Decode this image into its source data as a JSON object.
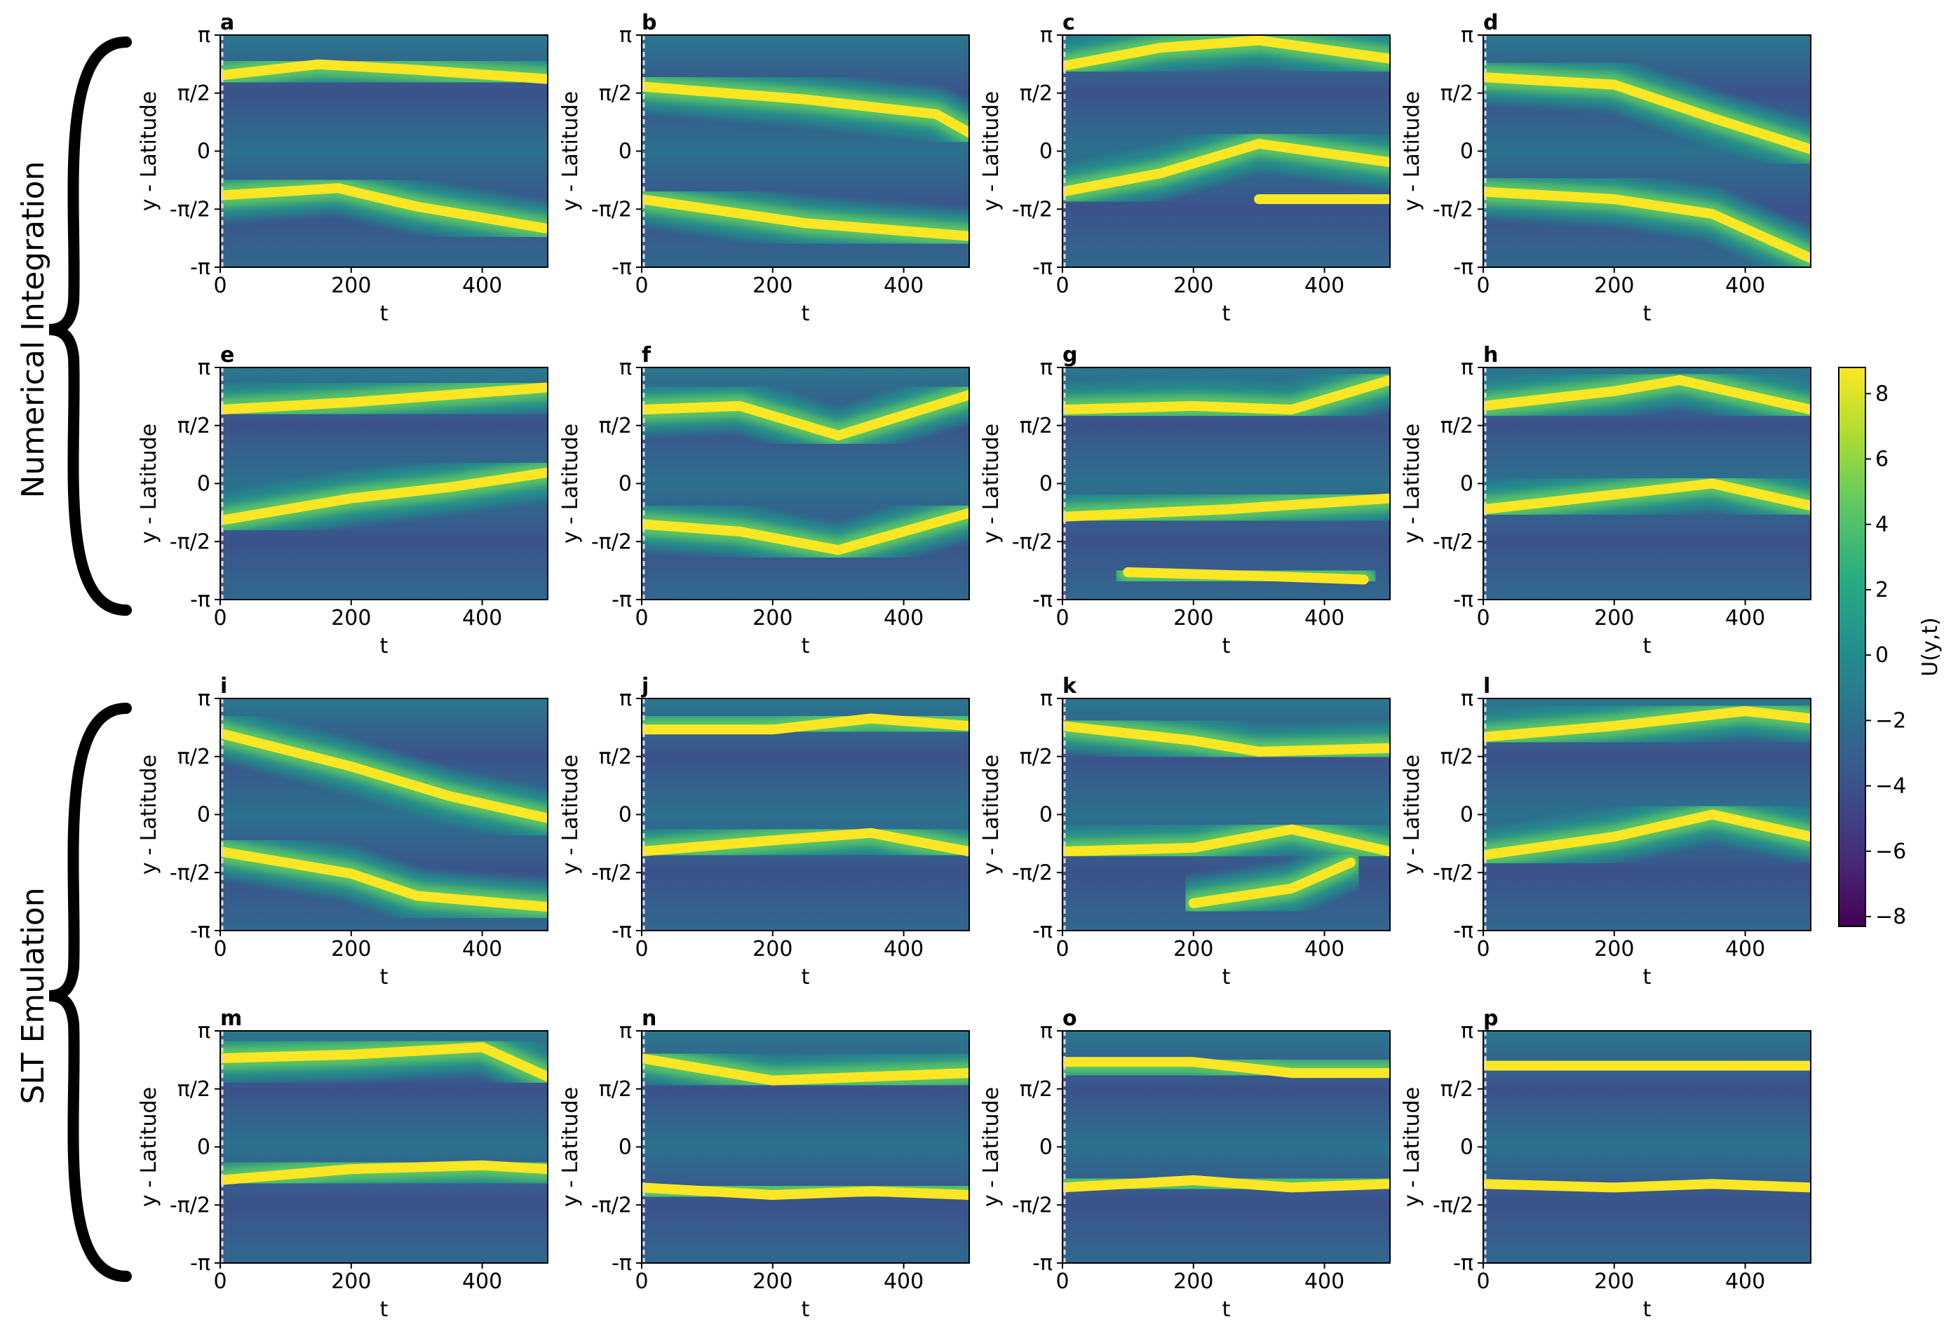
{
  "figure": {
    "group_labels": [
      "Numerical Integration",
      "SLT Emulation"
    ],
    "colorbar": {
      "label": "U(y,t)",
      "ticks": [
        "8",
        "6",
        "4",
        "2",
        "0",
        "−2",
        "−4",
        "−6",
        "−8"
      ],
      "colormap": "viridis",
      "colors": [
        "#440154",
        "#472c7a",
        "#3b518b",
        "#2c718e",
        "#21908d",
        "#27ad81",
        "#5cc863",
        "#aadc32",
        "#fde725"
      ]
    }
  },
  "chart_data": {
    "type": "heatmap",
    "panels": [
      "a",
      "b",
      "c",
      "d",
      "e",
      "f",
      "g",
      "h",
      "i",
      "j",
      "k",
      "l",
      "m",
      "n",
      "o",
      "p"
    ],
    "xlabel": "t",
    "ylabel": "y - Latitude",
    "xlim": [
      0,
      500
    ],
    "ylim": [
      "-π",
      "π"
    ],
    "x_ticks": [
      0,
      200,
      400
    ],
    "x_tick_labels": [
      "0",
      "200",
      "400"
    ],
    "y_tick_labels": [
      "π",
      "π/2",
      "0",
      "-π/2",
      "-π"
    ],
    "color_range": [
      -8.3,
      8.8
    ],
    "colorbar_ticks": [
      8,
      6,
      4,
      2,
      0,
      -2,
      -4,
      -6,
      -8
    ],
    "jets": [
      [
        [
          [
            0,
            2.05
          ],
          [
            150,
            2.35
          ],
          [
            300,
            2.2
          ],
          [
            500,
            1.95
          ]
        ],
        [
          [
            0,
            -1.2
          ],
          [
            180,
            -1.0
          ],
          [
            300,
            -1.5
          ],
          [
            500,
            -2.1
          ]
        ]
      ],
      [
        [
          [
            0,
            1.75
          ],
          [
            250,
            1.4
          ],
          [
            450,
            1.0
          ],
          [
            500,
            0.5
          ]
        ],
        [
          [
            0,
            -1.3
          ],
          [
            250,
            -1.95
          ],
          [
            500,
            -2.3
          ]
        ]
      ],
      [
        [
          [
            0,
            2.3
          ],
          [
            150,
            2.8
          ],
          [
            300,
            3.0
          ],
          [
            500,
            2.5
          ]
        ],
        [
          [
            0,
            -1.1
          ],
          [
            150,
            -0.6
          ],
          [
            300,
            0.2
          ],
          [
            500,
            -0.3
          ]
        ],
        [
          [
            300,
            -1.3
          ],
          [
            500,
            -1.3
          ]
        ]
      ],
      [
        [
          [
            0,
            2.0
          ],
          [
            200,
            1.8
          ],
          [
            350,
            0.9
          ],
          [
            500,
            0.05
          ]
        ],
        [
          [
            0,
            -1.1
          ],
          [
            200,
            -1.3
          ],
          [
            350,
            -1.7
          ],
          [
            500,
            -2.9
          ]
        ]
      ],
      [
        [
          [
            0,
            2.0
          ],
          [
            200,
            2.2
          ],
          [
            350,
            2.4
          ],
          [
            500,
            2.6
          ]
        ],
        [
          [
            0,
            -1.0
          ],
          [
            200,
            -0.4
          ],
          [
            350,
            -0.1
          ],
          [
            500,
            0.3
          ]
        ]
      ],
      [
        [
          [
            0,
            2.0
          ],
          [
            150,
            2.1
          ],
          [
            300,
            1.3
          ],
          [
            500,
            2.4
          ]
        ],
        [
          [
            0,
            -1.1
          ],
          [
            150,
            -1.3
          ],
          [
            300,
            -1.8
          ],
          [
            500,
            -0.8
          ]
        ]
      ],
      [
        [
          [
            0,
            2.0
          ],
          [
            200,
            2.1
          ],
          [
            350,
            2.0
          ],
          [
            500,
            2.8
          ]
        ],
        [
          [
            0,
            -0.9
          ],
          [
            250,
            -0.7
          ],
          [
            500,
            -0.4
          ]
        ],
        [
          [
            100,
            -2.4
          ],
          [
            300,
            -2.5
          ],
          [
            460,
            -2.6
          ]
        ]
      ],
      [
        [
          [
            0,
            2.1
          ],
          [
            200,
            2.5
          ],
          [
            300,
            2.8
          ],
          [
            500,
            2.0
          ]
        ],
        [
          [
            0,
            -0.7
          ],
          [
            200,
            -0.3
          ],
          [
            350,
            0.0
          ],
          [
            500,
            -0.6
          ]
        ]
      ],
      [
        [
          [
            0,
            2.2
          ],
          [
            200,
            1.3
          ],
          [
            350,
            0.5
          ],
          [
            500,
            -0.1
          ]
        ],
        [
          [
            0,
            -1.0
          ],
          [
            200,
            -1.6
          ],
          [
            300,
            -2.2
          ],
          [
            500,
            -2.5
          ]
        ]
      ],
      [
        [
          [
            0,
            2.3
          ],
          [
            200,
            2.3
          ],
          [
            350,
            2.6
          ],
          [
            500,
            2.4
          ]
        ],
        [
          [
            0,
            -1.0
          ],
          [
            200,
            -0.7
          ],
          [
            350,
            -0.5
          ],
          [
            500,
            -1.0
          ]
        ]
      ],
      [
        [
          [
            0,
            2.4
          ],
          [
            200,
            2.0
          ],
          [
            300,
            1.7
          ],
          [
            500,
            1.8
          ]
        ],
        [
          [
            0,
            -1.0
          ],
          [
            200,
            -0.9
          ],
          [
            350,
            -0.4
          ],
          [
            500,
            -1.0
          ]
        ],
        [
          [
            200,
            -2.4
          ],
          [
            350,
            -2.0
          ],
          [
            440,
            -1.3
          ]
        ]
      ],
      [
        [
          [
            0,
            2.1
          ],
          [
            200,
            2.4
          ],
          [
            400,
            2.8
          ],
          [
            500,
            2.6
          ]
        ],
        [
          [
            0,
            -1.1
          ],
          [
            200,
            -0.6
          ],
          [
            350,
            0.0
          ],
          [
            500,
            -0.6
          ]
        ]
      ],
      [
        [
          [
            0,
            2.4
          ],
          [
            200,
            2.5
          ],
          [
            400,
            2.7
          ],
          [
            500,
            1.9
          ]
        ],
        [
          [
            0,
            -0.9
          ],
          [
            200,
            -0.6
          ],
          [
            400,
            -0.5
          ],
          [
            500,
            -0.6
          ]
        ]
      ],
      [
        [
          [
            0,
            2.4
          ],
          [
            200,
            1.8
          ],
          [
            350,
            1.9
          ],
          [
            500,
            2.0
          ]
        ],
        [
          [
            0,
            -1.1
          ],
          [
            200,
            -1.3
          ],
          [
            350,
            -1.2
          ],
          [
            500,
            -1.3
          ]
        ]
      ],
      [
        [
          [
            0,
            2.3
          ],
          [
            200,
            2.3
          ],
          [
            350,
            2.0
          ],
          [
            500,
            2.0
          ]
        ],
        [
          [
            0,
            -1.1
          ],
          [
            200,
            -0.9
          ],
          [
            350,
            -1.1
          ],
          [
            500,
            -1.0
          ]
        ]
      ],
      [
        [
          [
            0,
            2.2
          ],
          [
            200,
            2.2
          ],
          [
            350,
            2.2
          ],
          [
            500,
            2.2
          ]
        ],
        [
          [
            0,
            -1.0
          ],
          [
            200,
            -1.1
          ],
          [
            350,
            -1.0
          ],
          [
            500,
            -1.1
          ]
        ]
      ]
    ]
  }
}
